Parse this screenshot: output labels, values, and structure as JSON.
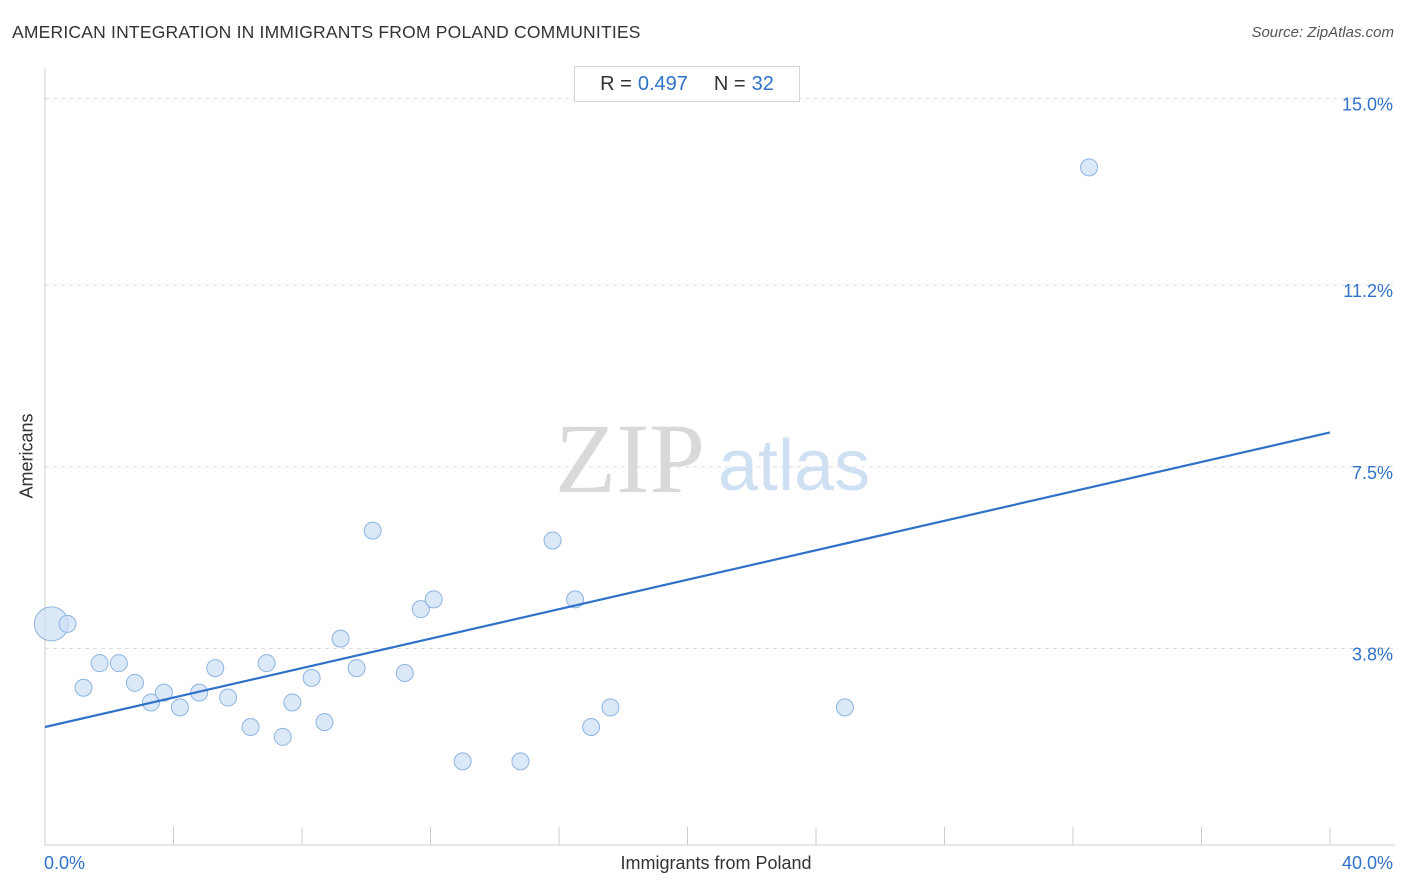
{
  "header": {
    "title": "AMERICAN INTEGRATION IN IMMIGRANTS FROM POLAND COMMUNITIES",
    "source": "Source: ZipAtlas.com"
  },
  "stats": {
    "r_label": "R =",
    "r_value": "0.497",
    "n_label": "N =",
    "n_value": "32"
  },
  "watermark": {
    "zip": "ZIP",
    "atlas": "atlas"
  },
  "colors": {
    "accent": "#2f72c8",
    "point_fill": "#cfe0f5",
    "point_stroke": "#8db4e2",
    "grid": "#dddddd"
  },
  "chart_data": {
    "type": "scatter",
    "title": "AMERICAN INTEGRATION IN IMMIGRANTS FROM POLAND COMMUNITIES",
    "xlabel": "Immigrants from Poland",
    "ylabel": "Americans",
    "xlim": [
      0,
      40
    ],
    "ylim": [
      0,
      15
    ],
    "x_tick_labels": [
      {
        "value": 0,
        "label": "0.0%"
      },
      {
        "value": 40,
        "label": "40.0%"
      }
    ],
    "y_tick_labels": [
      {
        "value": 3.8,
        "label": "3.8%"
      },
      {
        "value": 7.5,
        "label": "7.5%"
      },
      {
        "value": 11.2,
        "label": "11.2%"
      },
      {
        "value": 15.0,
        "label": "15.0%"
      }
    ],
    "grid": true,
    "trendline": {
      "x": [
        0,
        40
      ],
      "y": [
        2.2,
        8.2
      ]
    },
    "points": [
      {
        "x": 0.2,
        "y": 4.3,
        "big": true
      },
      {
        "x": 0.7,
        "y": 4.3
      },
      {
        "x": 1.2,
        "y": 3.0
      },
      {
        "x": 1.7,
        "y": 3.5
      },
      {
        "x": 2.3,
        "y": 3.5
      },
      {
        "x": 2.8,
        "y": 3.1
      },
      {
        "x": 3.3,
        "y": 2.7
      },
      {
        "x": 3.7,
        "y": 2.9
      },
      {
        "x": 4.2,
        "y": 2.6
      },
      {
        "x": 4.8,
        "y": 2.9
      },
      {
        "x": 5.3,
        "y": 3.4
      },
      {
        "x": 5.7,
        "y": 2.8
      },
      {
        "x": 6.4,
        "y": 2.2
      },
      {
        "x": 6.9,
        "y": 3.5
      },
      {
        "x": 7.4,
        "y": 2.0
      },
      {
        "x": 7.7,
        "y": 2.7
      },
      {
        "x": 8.3,
        "y": 3.2
      },
      {
        "x": 8.7,
        "y": 2.3
      },
      {
        "x": 9.2,
        "y": 4.0
      },
      {
        "x": 9.7,
        "y": 3.4
      },
      {
        "x": 10.2,
        "y": 6.2
      },
      {
        "x": 11.2,
        "y": 3.3
      },
      {
        "x": 11.7,
        "y": 4.6
      },
      {
        "x": 12.1,
        "y": 4.8
      },
      {
        "x": 13.0,
        "y": 1.5
      },
      {
        "x": 14.8,
        "y": 1.5
      },
      {
        "x": 15.8,
        "y": 6.0
      },
      {
        "x": 16.5,
        "y": 4.8
      },
      {
        "x": 17.0,
        "y": 2.2
      },
      {
        "x": 17.6,
        "y": 2.6
      },
      {
        "x": 24.9,
        "y": 2.6
      },
      {
        "x": 32.5,
        "y": 13.6
      }
    ]
  }
}
